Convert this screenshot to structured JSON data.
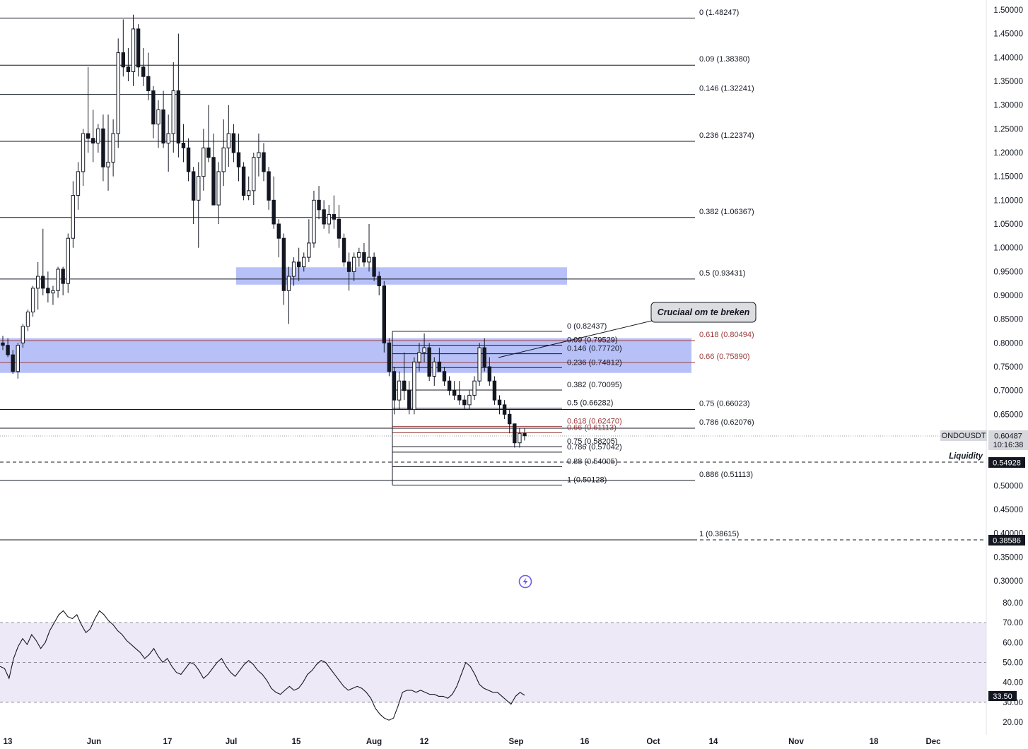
{
  "chart_data": [
    {
      "type": "candlestick",
      "symbol": "ONDOUSDT",
      "price_axis": {
        "labels": [
          "1.50000",
          "1.45000",
          "1.40000",
          "1.35000",
          "1.30000",
          "1.25000",
          "1.20000",
          "1.15000",
          "1.10000",
          "1.05000",
          "1.00000",
          "0.95000",
          "0.90000",
          "0.85000",
          "0.80000",
          "0.75000",
          "0.70000",
          "0.65000",
          "0.60000",
          "0.55000",
          "0.50000",
          "0.45000",
          "0.40000",
          "0.35000",
          "0.30000"
        ],
        "ylim": [
          0.28,
          1.52
        ]
      },
      "time_axis": {
        "labels": [
          "13",
          "Jun",
          "17",
          "Jul",
          "15",
          "Aug",
          "12",
          "Sep",
          "16",
          "Oct",
          "14",
          "Nov",
          "18",
          "Dec"
        ]
      },
      "current_price": {
        "value": "0.60487",
        "countdown": "10:16:38",
        "symbol_tag": "ONDOUSDT"
      },
      "price_tags": [
        {
          "value": "0.54928",
          "label": "Liquidity"
        },
        {
          "value": "0.38586",
          "label": ""
        }
      ],
      "fib_big": [
        {
          "ratio": "0",
          "price": 1.48247,
          "label": "0 (1.48247)"
        },
        {
          "ratio": "0.09",
          "price": 1.3838,
          "label": "0.09 (1.38380)"
        },
        {
          "ratio": "0.146",
          "price": 1.32241,
          "label": "0.146 (1.32241)"
        },
        {
          "ratio": "0.236",
          "price": 1.22374,
          "label": "0.236 (1.22374)"
        },
        {
          "ratio": "0.382",
          "price": 1.06367,
          "label": "0.382 (1.06367)"
        },
        {
          "ratio": "0.5",
          "price": 0.93431,
          "label": "0.5 (0.93431)"
        },
        {
          "ratio": "0.618",
          "price": 0.80494,
          "label": "0.618 (0.80494)",
          "color": "#9c3b3b"
        },
        {
          "ratio": "0.66",
          "price": 0.7589,
          "label": "0.66 (0.75890)",
          "color": "#9c3b3b"
        },
        {
          "ratio": "0.75",
          "price": 0.66023,
          "label": "0.75 (0.66023)"
        },
        {
          "ratio": "0.786",
          "price": 0.62076,
          "label": "0.786 (0.62076)"
        },
        {
          "ratio": "0.886",
          "price": 0.51113,
          "label": "0.886 (0.51113)"
        },
        {
          "ratio": "1",
          "price": 0.38615,
          "label": "1 (0.38615)"
        }
      ],
      "fib_small": [
        {
          "ratio": "0",
          "price": 0.82437,
          "label": "0 (0.82437)"
        },
        {
          "ratio": "0.09",
          "price": 0.79529,
          "label": "0.09 (0.79529)"
        },
        {
          "ratio": "0.146",
          "price": 0.7772,
          "label": "0.146 (0.77720)"
        },
        {
          "ratio": "0.236",
          "price": 0.74812,
          "label": "0.236 (0.74812)"
        },
        {
          "ratio": "0.382",
          "price": 0.70095,
          "label": "0.382 (0.70095)"
        },
        {
          "ratio": "0.5",
          "price": 0.66282,
          "label": "0.5 (0.66282)"
        },
        {
          "ratio": "0.618",
          "price": 0.6247,
          "label": "0.618 (0.62470)",
          "color": "#9c3b3b"
        },
        {
          "ratio": "0.66",
          "price": 0.61113,
          "label": "0.66 (0.61113)",
          "color": "#9c3b3b"
        },
        {
          "ratio": "0.75",
          "price": 0.58205,
          "label": "0.75 (0.58205)"
        },
        {
          "ratio": "0.786",
          "price": 0.57042,
          "label": "0.786 (0.57042)"
        },
        {
          "ratio": "0.88",
          "price": 0.54005,
          "label": "0.88 (0.54005)"
        },
        {
          "ratio": "1",
          "price": 0.50128,
          "label": "1 (0.50128)"
        }
      ],
      "zones": [
        {
          "from": 0.9225,
          "to": 0.959,
          "color": "#aab6f7"
        },
        {
          "from": 0.737,
          "to": 0.81,
          "color": "#aab6f7"
        }
      ],
      "annotations": [
        {
          "text": "Cruciaal om te breken"
        },
        {
          "text": "Liquidity"
        }
      ],
      "candles": [
        [
          0.8,
          0.815,
          0.785,
          0.795
        ],
        [
          0.795,
          0.81,
          0.77,
          0.775
        ],
        [
          0.775,
          0.785,
          0.735,
          0.74
        ],
        [
          0.74,
          0.8,
          0.725,
          0.795
        ],
        [
          0.8,
          0.84,
          0.79,
          0.835
        ],
        [
          0.835,
          0.87,
          0.825,
          0.865
        ],
        [
          0.865,
          0.92,
          0.855,
          0.915
        ],
        [
          0.915,
          0.97,
          0.87,
          0.94
        ],
        [
          0.94,
          1.04,
          0.9,
          0.915
        ],
        [
          0.915,
          0.95,
          0.885,
          0.905
        ],
        [
          0.905,
          0.92,
          0.88,
          0.91
        ],
        [
          0.91,
          0.96,
          0.895,
          0.955
        ],
        [
          0.955,
          0.96,
          0.9,
          0.925
        ],
        [
          0.925,
          1.03,
          0.905,
          1.02
        ],
        [
          1.02,
          1.14,
          1.0,
          1.11
        ],
        [
          1.11,
          1.18,
          1.08,
          1.16
        ],
        [
          1.16,
          1.25,
          1.13,
          1.24
        ],
        [
          1.24,
          1.38,
          1.2,
          1.23
        ],
        [
          1.23,
          1.29,
          1.18,
          1.22
        ],
        [
          1.22,
          1.26,
          1.2,
          1.25
        ],
        [
          1.25,
          1.28,
          1.14,
          1.17
        ],
        [
          1.17,
          1.28,
          1.12,
          1.18
        ],
        [
          1.18,
          1.27,
          1.15,
          1.24
        ],
        [
          1.24,
          1.44,
          1.21,
          1.41
        ],
        [
          1.41,
          1.48,
          1.36,
          1.38
        ],
        [
          1.38,
          1.42,
          1.35,
          1.37
        ],
        [
          1.37,
          1.49,
          1.34,
          1.46
        ],
        [
          1.46,
          1.47,
          1.36,
          1.38
        ],
        [
          1.38,
          1.42,
          1.34,
          1.36
        ],
        [
          1.36,
          1.41,
          1.31,
          1.33
        ],
        [
          1.33,
          1.34,
          1.23,
          1.26
        ],
        [
          1.26,
          1.31,
          1.21,
          1.29
        ],
        [
          1.29,
          1.33,
          1.21,
          1.22
        ],
        [
          1.22,
          1.28,
          1.16,
          1.24
        ],
        [
          1.24,
          1.39,
          1.2,
          1.33
        ],
        [
          1.33,
          1.45,
          1.19,
          1.22
        ],
        [
          1.22,
          1.26,
          1.18,
          1.21
        ],
        [
          1.21,
          1.23,
          1.14,
          1.16
        ],
        [
          1.16,
          1.17,
          1.05,
          1.1
        ],
        [
          1.1,
          1.18,
          1.0,
          1.15
        ],
        [
          1.15,
          1.25,
          1.12,
          1.21
        ],
        [
          1.21,
          1.3,
          1.18,
          1.19
        ],
        [
          1.19,
          1.24,
          1.09,
          1.09
        ],
        [
          1.09,
          1.18,
          1.05,
          1.16
        ],
        [
          1.16,
          1.27,
          1.13,
          1.21
        ],
        [
          1.21,
          1.3,
          1.17,
          1.24
        ],
        [
          1.24,
          1.26,
          1.18,
          1.2
        ],
        [
          1.2,
          1.24,
          1.14,
          1.17
        ],
        [
          1.17,
          1.18,
          1.1,
          1.11
        ],
        [
          1.11,
          1.15,
          1.1,
          1.12
        ],
        [
          1.12,
          1.2,
          1.09,
          1.19
        ],
        [
          1.19,
          1.24,
          1.15,
          1.2
        ],
        [
          1.2,
          1.22,
          1.14,
          1.16
        ],
        [
          1.16,
          1.17,
          1.08,
          1.1
        ],
        [
          1.1,
          1.15,
          1.04,
          1.05
        ],
        [
          1.05,
          1.06,
          0.98,
          1.02
        ],
        [
          1.02,
          1.03,
          0.88,
          0.91
        ],
        [
          0.91,
          0.96,
          0.84,
          0.94
        ],
        [
          0.94,
          0.98,
          0.92,
          0.97
        ],
        [
          0.97,
          1.0,
          0.93,
          0.96
        ],
        [
          0.96,
          0.99,
          0.95,
          0.98
        ],
        [
          0.98,
          1.06,
          0.97,
          1.01
        ],
        [
          1.01,
          1.12,
          1.0,
          1.1
        ],
        [
          1.1,
          1.13,
          1.06,
          1.08
        ],
        [
          1.08,
          1.1,
          1.04,
          1.05
        ],
        [
          1.05,
          1.09,
          1.03,
          1.07
        ],
        [
          1.07,
          1.11,
          1.04,
          1.06
        ],
        [
          1.06,
          1.09,
          1.0,
          1.02
        ],
        [
          1.02,
          1.03,
          0.96,
          0.97
        ],
        [
          0.97,
          0.99,
          0.91,
          0.95
        ],
        [
          0.95,
          0.99,
          0.93,
          0.98
        ],
        [
          0.98,
          1.0,
          0.96,
          0.99
        ],
        [
          0.99,
          1.01,
          0.96,
          0.97
        ],
        [
          0.97,
          1.05,
          0.95,
          0.98
        ],
        [
          0.98,
          0.99,
          0.93,
          0.94
        ],
        [
          0.94,
          0.95,
          0.9,
          0.92
        ],
        [
          0.92,
          0.93,
          0.78,
          0.8
        ],
        [
          0.8,
          0.81,
          0.73,
          0.74
        ],
        [
          0.74,
          0.75,
          0.65,
          0.68
        ],
        [
          0.68,
          0.74,
          0.66,
          0.72
        ],
        [
          0.72,
          0.78,
          0.68,
          0.7
        ],
        [
          0.7,
          0.72,
          0.65,
          0.66
        ],
        [
          0.66,
          0.77,
          0.65,
          0.76
        ],
        [
          0.76,
          0.8,
          0.74,
          0.78
        ],
        [
          0.78,
          0.82,
          0.76,
          0.79
        ],
        [
          0.79,
          0.8,
          0.72,
          0.73
        ],
        [
          0.73,
          0.77,
          0.71,
          0.76
        ],
        [
          0.76,
          0.79,
          0.74,
          0.74
        ],
        [
          0.74,
          0.75,
          0.71,
          0.72
        ],
        [
          0.72,
          0.73,
          0.69,
          0.7
        ],
        [
          0.7,
          0.72,
          0.68,
          0.69
        ],
        [
          0.69,
          0.72,
          0.67,
          0.68
        ],
        [
          0.68,
          0.69,
          0.66,
          0.67
        ],
        [
          0.67,
          0.7,
          0.66,
          0.69
        ],
        [
          0.69,
          0.73,
          0.68,
          0.72
        ],
        [
          0.72,
          0.8,
          0.71,
          0.79
        ],
        [
          0.79,
          0.81,
          0.74,
          0.75
        ],
        [
          0.75,
          0.77,
          0.71,
          0.72
        ],
        [
          0.72,
          0.73,
          0.67,
          0.68
        ],
        [
          0.68,
          0.69,
          0.65,
          0.67
        ],
        [
          0.67,
          0.68,
          0.64,
          0.65
        ],
        [
          0.65,
          0.66,
          0.61,
          0.63
        ],
        [
          0.63,
          0.63,
          0.58,
          0.59
        ],
        [
          0.59,
          0.62,
          0.58,
          0.61
        ],
        [
          0.61,
          0.62,
          0.595,
          0.60487
        ]
      ]
    },
    {
      "type": "line",
      "name": "RSI",
      "axis_labels": [
        "80.00",
        "70.00",
        "60.00",
        "50.00",
        "40.00",
        "30.00",
        "20.00"
      ],
      "ylim": [
        15,
        85
      ],
      "levels": [
        70,
        50,
        30
      ],
      "current": "33.50",
      "values": [
        48,
        47,
        42,
        52,
        58,
        62,
        59,
        64,
        61,
        57,
        60,
        66,
        70,
        74,
        76,
        73,
        72,
        74,
        69,
        65,
        67,
        72,
        76,
        74,
        71,
        69,
        66,
        64,
        61,
        59,
        57,
        55,
        52,
        54,
        57,
        53,
        50,
        52,
        48,
        45,
        44,
        47,
        50,
        49,
        46,
        42,
        44,
        47,
        50,
        52,
        48,
        45,
        43,
        46,
        49,
        51,
        49,
        46,
        44,
        41,
        37,
        35,
        34,
        36,
        38,
        36,
        37,
        40,
        44,
        46,
        49,
        51,
        50,
        47,
        44,
        41,
        38,
        36,
        37,
        38,
        37,
        35,
        32,
        27,
        24,
        22,
        21,
        22,
        28,
        35,
        36,
        36,
        35,
        36,
        35,
        34,
        34,
        33,
        33,
        32,
        34,
        38,
        44,
        50,
        48,
        44,
        39,
        37,
        36,
        35,
        35,
        33,
        31,
        29,
        33,
        35,
        33.5
      ]
    }
  ],
  "icons": {
    "lightning": "lightning-icon"
  }
}
